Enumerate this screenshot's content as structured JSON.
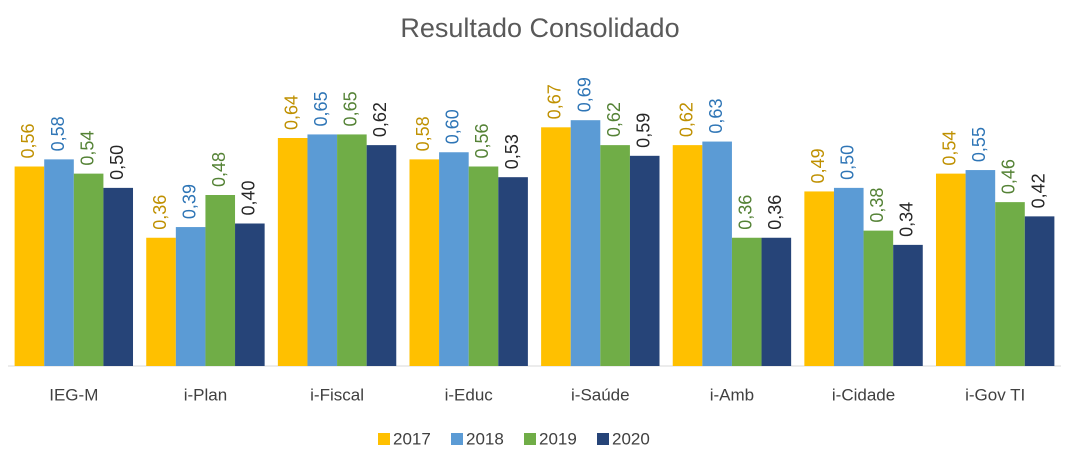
{
  "chart_data": {
    "type": "bar",
    "title": "Resultado Consolidado",
    "categories": [
      "IEG-M",
      "i-Plan",
      "i-Fiscal",
      "i-Educ",
      "i-Saúde",
      "i-Amb",
      "i-Cidade",
      "i-Gov TI"
    ],
    "series": [
      {
        "name": "2017",
        "color": "#FFC000",
        "label_color": "#BF9000",
        "values": [
          0.56,
          0.36,
          0.64,
          0.58,
          0.67,
          0.62,
          0.49,
          0.54
        ],
        "value_labels": [
          "0,56",
          "0,36",
          "0,64",
          "0,58",
          "0,67",
          "0,62",
          "0,49",
          "0,54"
        ]
      },
      {
        "name": "2018",
        "color": "#5B9BD5",
        "label_color": "#2E75B6",
        "values": [
          0.58,
          0.39,
          0.65,
          0.6,
          0.69,
          0.63,
          0.5,
          0.55
        ],
        "value_labels": [
          "0,58",
          "0,39",
          "0,65",
          "0,60",
          "0,69",
          "0,63",
          "0,50",
          "0,55"
        ]
      },
      {
        "name": "2019",
        "color": "#70AD47",
        "label_color": "#548235",
        "values": [
          0.54,
          0.48,
          0.65,
          0.56,
          0.62,
          0.36,
          0.38,
          0.46
        ],
        "value_labels": [
          "0,54",
          "0,48",
          "0,65",
          "0,56",
          "0,62",
          "0,36",
          "0,38",
          "0,46"
        ]
      },
      {
        "name": "2020",
        "color": "#264478",
        "label_color": "#262626",
        "values": [
          0.5,
          0.4,
          0.62,
          0.53,
          0.59,
          0.36,
          0.34,
          0.42
        ],
        "value_labels": [
          "0,50",
          "0,40",
          "0,62",
          "0,53",
          "0,59",
          "0,36",
          "0,34",
          "0,42"
        ]
      }
    ],
    "ylim": [
      0,
      0.8
    ]
  }
}
